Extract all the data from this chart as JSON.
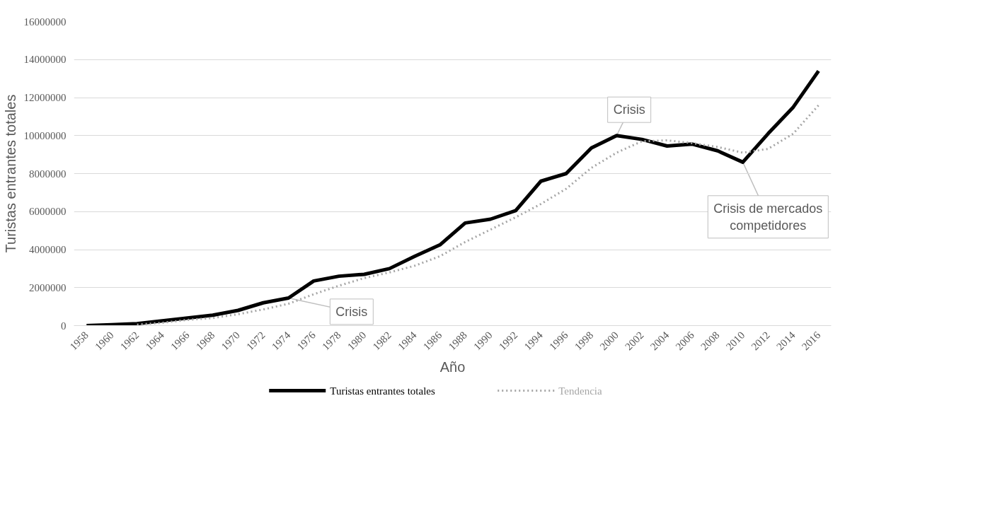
{
  "chart_data": {
    "type": "line",
    "xlabel": "Año",
    "ylabel": "Turistas entrantes totales",
    "categories": [
      "1958",
      "1960",
      "1962",
      "1964",
      "1966",
      "1968",
      "1970",
      "1972",
      "1974",
      "1976",
      "1978",
      "1980",
      "1982",
      "1984",
      "1986",
      "1988",
      "1990",
      "1992",
      "1994",
      "1996",
      "1998",
      "2000",
      "2002",
      "2004",
      "2006",
      "2008",
      "2010",
      "2012",
      "2014",
      "2016"
    ],
    "series": [
      {
        "name": "Turistas entrantes totales",
        "color": "#000000",
        "line_style": "solid",
        "values": [
          0,
          50000,
          100000,
          250000,
          400000,
          550000,
          800000,
          1200000,
          1450000,
          2350000,
          2600000,
          2700000,
          3000000,
          3650000,
          4250000,
          5400000,
          5600000,
          6050000,
          7600000,
          8000000,
          9350000,
          10000000,
          9800000,
          9450000,
          9550000,
          9200000,
          8600000,
          10100000,
          11500000,
          13400000
        ]
      },
      {
        "name": "Tendencia",
        "color": "#a6a6a6",
        "line_style": "dotted",
        "values": [
          null,
          null,
          50000,
          150000,
          300000,
          400000,
          600000,
          850000,
          1150000,
          1650000,
          2100000,
          2500000,
          2800000,
          3150000,
          3650000,
          4400000,
          5050000,
          5700000,
          6400000,
          7200000,
          8300000,
          9100000,
          9700000,
          9750000,
          9600000,
          9400000,
          9100000,
          9300000,
          10100000,
          11600000
        ]
      }
    ],
    "ylim": [
      0,
      16000000
    ],
    "yticks": [
      0,
      2000000,
      4000000,
      6000000,
      8000000,
      10000000,
      12000000,
      14000000,
      16000000
    ],
    "grid": "y",
    "legend": "bottom",
    "marker": "none",
    "annotations": [
      {
        "text": "Crisis",
        "x": "1974",
        "y": 1450000
      },
      {
        "text": "Crisis",
        "x": "2000",
        "y": 10000000
      },
      {
        "text": "Crisis de mercados\ncompetidores",
        "x": "2010",
        "y": 8600000
      }
    ]
  }
}
